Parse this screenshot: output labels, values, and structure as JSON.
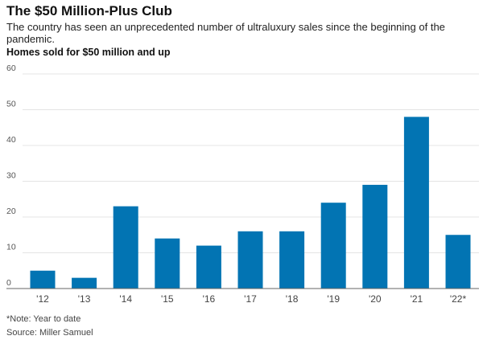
{
  "chart_data": {
    "type": "bar",
    "title": "The $50 Million-Plus Club",
    "subtitle": "The country has seen an unprecedented number of ultraluxury sales since the beginning of the pandemic.",
    "ylabel": "Homes sold for $50 million and up",
    "xlabel": "",
    "categories": [
      "'12",
      "'13",
      "'14",
      "'15",
      "'16",
      "'17",
      "'18",
      "'19",
      "'20",
      "'21",
      "'22*"
    ],
    "values": [
      5,
      3,
      23,
      14,
      12,
      16,
      16,
      24,
      29,
      48,
      15
    ],
    "ylim": [
      0,
      60
    ],
    "yticks": [
      "0",
      "10",
      "20",
      "30",
      "40",
      "50",
      "60"
    ],
    "grid": true,
    "bar_color": "#0274b3",
    "note": "*Note: Year to date",
    "source": "Source: Miller Samuel"
  }
}
